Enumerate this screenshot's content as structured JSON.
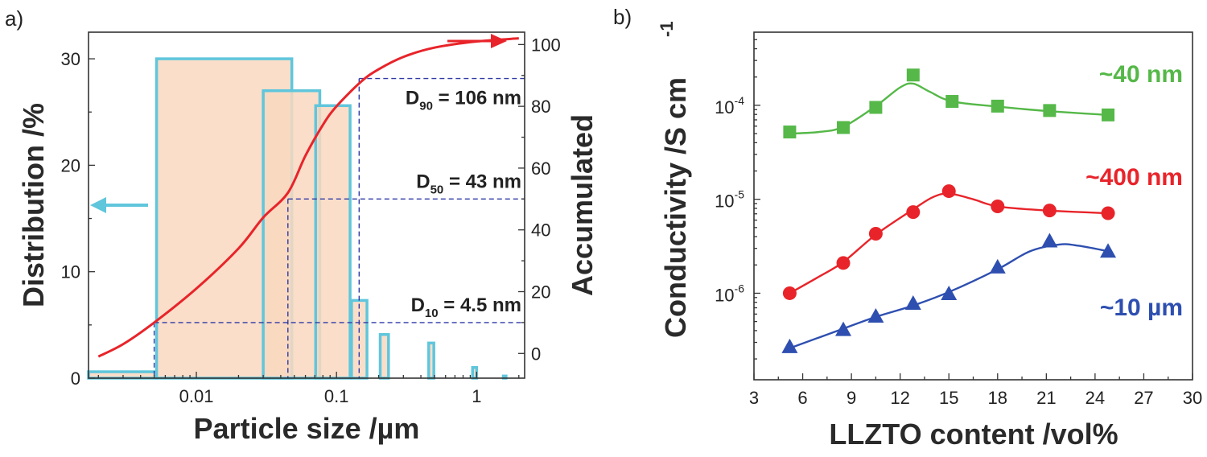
{
  "chart_data": [
    {
      "panel_label": "a)",
      "type": "bar+line",
      "xscale": "log",
      "xlabel": "Particle size /µm",
      "ylabel_left": "Distribution /%",
      "ylabel_right": "Accumulated",
      "xlim": [
        0.0017,
        2.2
      ],
      "ylim_left": [
        0,
        32.5
      ],
      "ylim_right": [
        -8,
        104
      ],
      "x_ticks": [
        {
          "value": 0.01,
          "label": "0.01"
        },
        {
          "value": 0.1,
          "label": "0.1"
        },
        {
          "value": 1,
          "label": "1"
        }
      ],
      "y_ticks_left": [
        {
          "value": 0,
          "label": "0"
        },
        {
          "value": 10,
          "label": "10"
        },
        {
          "value": 20,
          "label": "20"
        },
        {
          "value": 30,
          "label": "30"
        }
      ],
      "y_ticks_right": [
        {
          "value": 0,
          "label": "0"
        },
        {
          "value": 20,
          "label": "20"
        },
        {
          "value": 40,
          "label": "40"
        },
        {
          "value": 60,
          "label": "60"
        },
        {
          "value": 80,
          "label": "80"
        },
        {
          "value": 100,
          "label": "100"
        }
      ],
      "distribution_bins": [
        {
          "x0": 0.0017,
          "x1": 0.0052,
          "value": 0.6
        },
        {
          "x0": 0.0052,
          "x1": 0.048,
          "value": 30
        },
        {
          "x0": 0.03,
          "x1": 0.076,
          "value": 27
        },
        {
          "x0": 0.071,
          "x1": 0.125,
          "value": 25.6
        },
        {
          "x0": 0.128,
          "x1": 0.165,
          "value": 7.3
        },
        {
          "x0": 0.205,
          "x1": 0.235,
          "value": 4.1
        },
        {
          "x0": 0.455,
          "x1": 0.495,
          "value": 3.3
        },
        {
          "x0": 0.935,
          "x1": 1.0,
          "value": 1.0
        },
        {
          "x0": 1.55,
          "x1": 1.62,
          "value": 0.2
        }
      ],
      "accumulated_curve": {
        "x": [
          0.002,
          0.003,
          0.005,
          0.01,
          0.02,
          0.03,
          0.045,
          0.06,
          0.08,
          0.1,
          0.15,
          0.2,
          0.3,
          0.5,
          1,
          2
        ],
        "y": [
          -1,
          3,
          10,
          21,
          34,
          44,
          52,
          64,
          74,
          80,
          88,
          92,
          96,
          99,
          101,
          102
        ]
      },
      "annotations": [
        {
          "main": "D",
          "sub": "90",
          "rest": " = 106 nm",
          "x": 0.145,
          "y": 89
        },
        {
          "main": "D",
          "sub": "50",
          "rest": " = 43 nm",
          "x": 0.045,
          "y": 50
        },
        {
          "main": "D",
          "sub": "10",
          "rest": " = 4.5 nm",
          "x": 0.005,
          "y": 10
        }
      ],
      "colors": {
        "bar_fill": "#f9d8c0",
        "bar_edge": "#5fc6dc",
        "curve": "#e8242a",
        "dash": "#2f3aa6",
        "arrow_left": "#5fc6dc",
        "arrow_right": "#e8242a"
      }
    },
    {
      "panel_label": "b)",
      "type": "line+scatter",
      "yscale": "log",
      "xlabel": "LLZTO content /vol%",
      "ylabel": "Conductivity /S cm",
      "ylabel_sup": "-1",
      "xlim": [
        3,
        30
      ],
      "ylim": [
        1.2e-07,
        0.0006
      ],
      "x_ticks": [
        {
          "value": 3,
          "label": "3"
        },
        {
          "value": 6,
          "label": "6"
        },
        {
          "value": 9,
          "label": "9"
        },
        {
          "value": 12,
          "label": "12"
        },
        {
          "value": 15,
          "label": "15"
        },
        {
          "value": 18,
          "label": "18"
        },
        {
          "value": 21,
          "label": "21"
        },
        {
          "value": 24,
          "label": "24"
        },
        {
          "value": 27,
          "label": "27"
        },
        {
          "value": 30,
          "label": "30"
        }
      ],
      "y_ticks": [
        {
          "value": 1e-06,
          "base": "10",
          "exp": "-6"
        },
        {
          "value": 1e-05,
          "base": "10",
          "exp": "-5"
        },
        {
          "value": 0.0001,
          "base": "10",
          "exp": "-4"
        }
      ],
      "series": [
        {
          "name": "~40 nm",
          "color": "#55b848",
          "marker": "square",
          "x": [
            5.2,
            8.5,
            10.5,
            12.8,
            15.2,
            18.0,
            21.2,
            24.8
          ],
          "y": [
            5.2e-05,
            5.8e-05,
            9.5e-05,
            0.00021,
            0.00011,
            9.8e-05,
            8.8e-05,
            7.9e-05
          ],
          "fit": [
            [
              5.2,
              5e-05
            ],
            [
              7,
              5.2e-05
            ],
            [
              8.5,
              5.9e-05
            ],
            [
              10.5,
              9.8e-05
            ],
            [
              12,
              0.000155
            ],
            [
              12.8,
              0.00017
            ],
            [
              13.8,
              0.00014
            ],
            [
              15.2,
              0.00011
            ],
            [
              18,
              9.7e-05
            ],
            [
              21,
              8.7e-05
            ],
            [
              24.8,
              7.9e-05
            ]
          ]
        },
        {
          "name": "~400 nm",
          "color": "#e8242a",
          "marker": "circle",
          "x": [
            5.2,
            8.5,
            10.5,
            12.8,
            15.0,
            18.0,
            21.2,
            24.8
          ],
          "y": [
            1e-06,
            2.1e-06,
            4.3e-06,
            7.3e-06,
            1.22e-05,
            8.4e-06,
            7.6e-06,
            7.1e-06
          ],
          "fit": [
            [
              5.2,
              1e-06
            ],
            [
              7,
              1.5e-06
            ],
            [
              8.5,
              2.15e-06
            ],
            [
              10.5,
              4.2e-06
            ],
            [
              12.8,
              7.8e-06
            ],
            [
              14,
              1.05e-05
            ],
            [
              15.0,
              1.15e-05
            ],
            [
              16.5,
              1e-05
            ],
            [
              18,
              8.4e-06
            ],
            [
              21,
              7.6e-06
            ],
            [
              24.8,
              7.1e-06
            ]
          ]
        },
        {
          "name": "~10 µm",
          "color": "#2e4fb0",
          "marker": "triangle",
          "x": [
            5.2,
            8.5,
            10.5,
            12.8,
            15.0,
            18.0,
            21.2,
            24.8
          ],
          "y": [
            2.7e-07,
            4.1e-07,
            5.7e-07,
            7.8e-07,
            9.9e-07,
            1.9e-06,
            3.6e-06,
            2.8e-06
          ],
          "fit": [
            [
              5.2,
              2.6e-07
            ],
            [
              8.5,
              4.2e-07
            ],
            [
              10.5,
              5.6e-07
            ],
            [
              12.8,
              7.4e-07
            ],
            [
              15,
              1.03e-06
            ],
            [
              18,
              1.8e-06
            ],
            [
              20,
              2.8e-06
            ],
            [
              21.8,
              3.3e-06
            ],
            [
              23,
              3.2e-06
            ],
            [
              24.8,
              2.8e-06
            ]
          ]
        }
      ]
    }
  ]
}
